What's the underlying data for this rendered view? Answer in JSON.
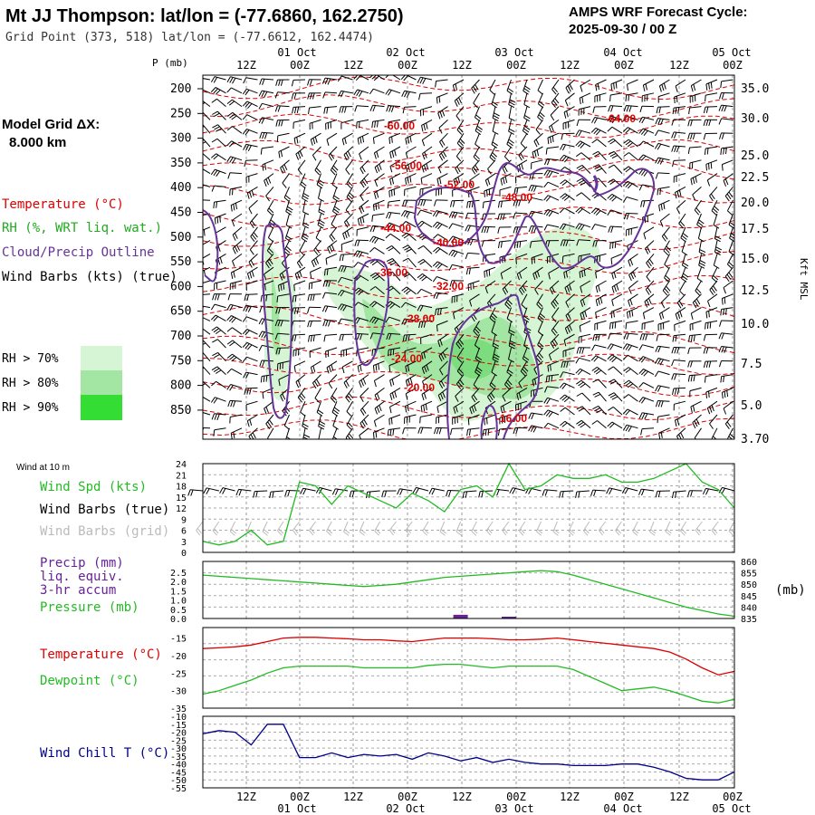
{
  "header": {
    "title": "Mt JJ Thompson:  lat/lon = (-77.6860, 162.2750)",
    "grid_point": "Grid Point (373, 518) lat/lon = (-77.6612, 162.4474)",
    "cycle_label": "AMPS WRF Forecast Cycle:",
    "cycle_value": "2025-09-30 / 00  Z"
  },
  "sidebar": {
    "model_grid_label": "Model Grid ΔX:",
    "model_grid_value": "8.000 km",
    "legend_temperature": "Temperature (°C)",
    "legend_rh": "RH (%, WRT liq. wat.)",
    "legend_cloud": "Cloud/Precip Outline",
    "legend_wind": "Wind Barbs (kts) (true)",
    "rh_70": "RH > 70%",
    "rh_80": "RH > 80%",
    "rh_90": "RH > 90%"
  },
  "colors": {
    "temperature": "#dd0000",
    "rh70": "#d5f5d5",
    "rh80": "#a3e6a3",
    "rh90": "#33dd33",
    "cloud": "#663399",
    "wind_speed": "#22bb22",
    "precip": "#662299",
    "pressure": "#22bb22",
    "dewpoint": "#22bb22",
    "wind_chill": "#000088"
  },
  "chart_data": [
    {
      "type": "cross-section",
      "name": "upper-air time-height",
      "y_axis_label": "P (mb)",
      "y_ticks": [
        "200",
        "250",
        "300",
        "350",
        "400",
        "450",
        "500",
        "550",
        "600",
        "650",
        "700",
        "750",
        "800",
        "850"
      ],
      "x_ticks_top": [
        "12Z",
        "00Z",
        "12Z",
        "00Z",
        "12Z",
        "00Z",
        "12Z",
        "00Z",
        "12Z",
        "00Z"
      ],
      "date_labels": [
        "01 Oct",
        "02 Oct",
        "03 Oct",
        "04 Oct",
        "05 Oct"
      ],
      "right_axis_label": "Kft MSL",
      "right_ticks": [
        "35.0",
        "30.0",
        "25.0",
        "22.5",
        "20.0",
        "17.5",
        "15.0",
        "12.5",
        "10.0",
        "7.5",
        "5.0",
        "3.70"
      ],
      "temperature_labels": [
        "-60.00",
        "-64.00",
        "-56.00",
        "-52.00",
        "-48.00",
        "-44.00",
        "-40.00",
        "-36.00",
        "-32.00",
        "-28.00",
        "-24.00",
        "-20.00",
        "-16.00"
      ]
    },
    {
      "type": "line",
      "name": "wind at 10 m",
      "panel_label": "Wind at 10 m",
      "legend_speed": "Wind Spd (kts)",
      "legend_barbs_true": "Wind Barbs (true)",
      "legend_barbs_grid": "Wind Barbs (grid)",
      "y_ticks": [
        "24",
        "21",
        "18",
        "15",
        "12",
        "9",
        "6",
        "3",
        "0"
      ],
      "ylim": [
        0,
        24
      ],
      "series": [
        {
          "name": "Wind Spd (kts)",
          "values": [
            3,
            2,
            3,
            6,
            2,
            3,
            19,
            18,
            13,
            18,
            16,
            14,
            12,
            16,
            14,
            11,
            17,
            18,
            15,
            24,
            17,
            18,
            21,
            20,
            20,
            21,
            19,
            19,
            20,
            22,
            24,
            19,
            17,
            12
          ]
        }
      ]
    },
    {
      "type": "line",
      "name": "precip and pressure",
      "legend_precip_1": "Precip (mm)",
      "legend_precip_2": "liq. equiv.",
      "legend_precip_3": "3-hr accum",
      "legend_pressure": "Pressure (mb)",
      "y_ticks_left": [
        "2.5",
        "2.0",
        "1.5",
        "1.0",
        "0.5",
        "0.0"
      ],
      "y_ticks_right": [
        "860",
        "855",
        "850",
        "845",
        "840",
        "835"
      ],
      "right_unit": "(mb)",
      "ylim_left": [
        0,
        2.5
      ],
      "ylim_right": [
        835,
        860
      ],
      "precip_bars": [
        {
          "index": 16,
          "value": 0.2
        },
        {
          "index": 19,
          "value": 0.05
        }
      ],
      "series": [
        {
          "name": "Pressure (mb)",
          "values": [
            854,
            853.5,
            853,
            852.5,
            852,
            851.5,
            851,
            850.5,
            850,
            849.5,
            849,
            849.5,
            850,
            851,
            852,
            853,
            853.5,
            854,
            854.5,
            855,
            855.5,
            856,
            855.5,
            854,
            852,
            850,
            848,
            846,
            844,
            842,
            840,
            838.5,
            837,
            836
          ]
        }
      ]
    },
    {
      "type": "line",
      "name": "temperature and dewpoint",
      "legend_temperature": "Temperature (°C)",
      "legend_dewpoint": "Dewpoint (°C)",
      "y_ticks": [
        "-15",
        "-20",
        "-25",
        "-30",
        "-35"
      ],
      "ylim": [
        -35,
        -12
      ],
      "series": [
        {
          "name": "Temperature (°C)",
          "values": [
            -18,
            -17.8,
            -17.5,
            -17,
            -16,
            -15,
            -14.8,
            -14.8,
            -15,
            -15.2,
            -15.5,
            -15.5,
            -15.8,
            -16,
            -15.5,
            -15,
            -15,
            -15,
            -15.2,
            -15.5,
            -15.5,
            -15.3,
            -15,
            -15.5,
            -16,
            -16.5,
            -17,
            -17.5,
            -18,
            -19,
            -21,
            -23.5,
            -25.5,
            -24.5
          ]
        },
        {
          "name": "Dewpoint (°C)",
          "values": [
            -31,
            -30,
            -28.5,
            -27,
            -25,
            -23.5,
            -23,
            -23,
            -23,
            -23,
            -23.5,
            -23.5,
            -23.5,
            -23.5,
            -22.8,
            -22.5,
            -22.5,
            -23,
            -23.5,
            -23,
            -23,
            -23,
            -23,
            -24,
            -26,
            -28,
            -30,
            -29.5,
            -29,
            -30,
            -31.5,
            -33,
            -33.5,
            -32.5
          ]
        }
      ]
    },
    {
      "type": "line",
      "name": "wind chill",
      "legend_wind_chill": "Wind Chill T (°C)",
      "y_ticks": [
        "-10",
        "-15",
        "-20",
        "-25",
        "-30",
        "-35",
        "-40",
        "-45",
        "-50",
        "-55"
      ],
      "x_ticks_bottom": [
        "12Z",
        "00Z",
        "12Z",
        "00Z",
        "12Z",
        "00Z",
        "12Z",
        "00Z",
        "12Z",
        "00Z"
      ],
      "ylim": [
        -55,
        -10
      ],
      "series": [
        {
          "name": "Wind Chill T (°C)",
          "values": [
            -21,
            -19,
            -20,
            -28,
            -15,
            -15,
            -36,
            -36,
            -33,
            -36,
            -34,
            -35,
            -34,
            -37,
            -33,
            -35,
            -38,
            -36,
            -39,
            -37,
            -39,
            -40,
            -40,
            -41,
            -41,
            -41,
            -40,
            -40,
            -42,
            -45,
            -49,
            -50,
            -50,
            -45
          ]
        }
      ]
    }
  ]
}
